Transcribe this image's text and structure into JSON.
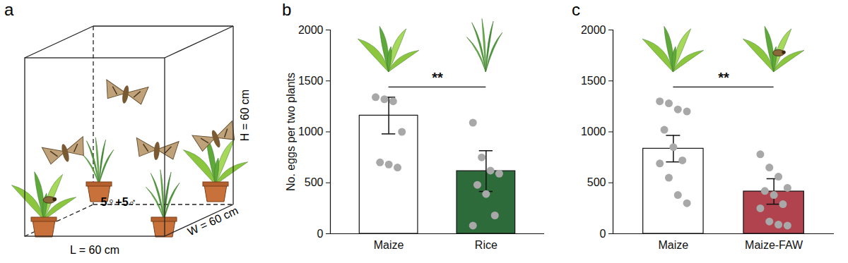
{
  "panel_a": {
    "panel": "a",
    "length_label": "L = 60 cm",
    "width_label": "W = 60 cm",
    "height_label": "H = 60 cm",
    "insects": "5♀+5♂"
  },
  "chart_data": [
    {
      "panel": "b",
      "type": "bar",
      "categories": [
        "Maize",
        "Rice"
      ],
      "values": [
        1160,
        615
      ],
      "errors": [
        180,
        200
      ],
      "points": [
        [
          1340,
          1320,
          1300,
          1000,
          700,
          680,
          650
        ],
        [
          1090,
          750,
          620,
          590,
          480,
          390,
          180,
          80
        ]
      ],
      "colors": [
        "#ffffff",
        "#2e6b3a"
      ],
      "y_label": "No. eggs per two plants",
      "ylim": [
        0,
        2000
      ],
      "yticks": [
        0,
        500,
        1000,
        1500,
        2000
      ],
      "significance": "**"
    },
    {
      "panel": "c",
      "type": "bar",
      "categories": [
        "Maize",
        "Maize-FAW"
      ],
      "values": [
        835,
        415
      ],
      "errors": [
        130,
        125
      ],
      "points": [
        [
          1300,
          1280,
          1220,
          1200,
          1020,
          850,
          720,
          690,
          550,
          380,
          300
        ],
        [
          780,
          650,
          560,
          450,
          420,
          380,
          290,
          250,
          120,
          90,
          80
        ]
      ],
      "colors": [
        "#ffffff",
        "#b0434e"
      ],
      "ylim": [
        0,
        2000
      ],
      "yticks": [
        0,
        500,
        1000,
        1500,
        2000
      ],
      "significance": "**"
    }
  ]
}
